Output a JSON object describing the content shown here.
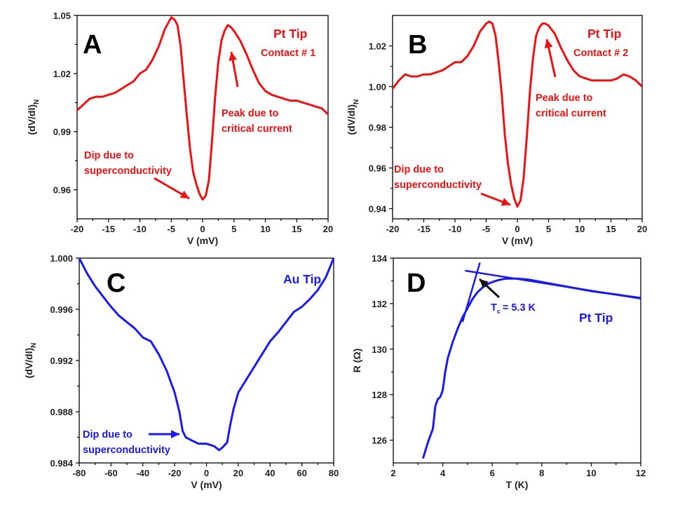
{
  "colors": {
    "red": "#ee1111",
    "blue": "#1a1aee"
  },
  "chart_data": [
    {
      "id": "A",
      "type": "line",
      "panel_label": "A",
      "tip_label": "Pt Tip",
      "contact_label": "Contact # 1",
      "xlabel": "V (mV)",
      "ylabel": "(dV/dI)",
      "ylabel_sub": "N",
      "xlim": [
        -20,
        20
      ],
      "ylim": [
        0.945,
        1.05
      ],
      "xticks": [
        -20,
        -15,
        -10,
        -5,
        0,
        5,
        10,
        15,
        20
      ],
      "yticks": [
        0.96,
        0.99,
        1.02,
        1.05
      ],
      "ytick_labels": [
        "0.96",
        "0.99",
        "1.02",
        "1.05"
      ],
      "annotations": [
        {
          "line1": "Peak due to",
          "line2": "critical current"
        },
        {
          "line1": "Dip due to",
          "line2": "superconductivity"
        }
      ],
      "x": [
        -20,
        -19,
        -18,
        -17,
        -16,
        -15,
        -14,
        -13,
        -12,
        -11,
        -10,
        -9,
        -8,
        -7,
        -6,
        -5,
        -4.5,
        -4,
        -3.5,
        -3,
        -2.5,
        -2,
        -1.5,
        -1,
        -0.5,
        0,
        0.5,
        1,
        1.5,
        2,
        2.5,
        3,
        3.5,
        4,
        4.5,
        5,
        6,
        7,
        8,
        9,
        10,
        11,
        12,
        13,
        14,
        15,
        16,
        17,
        18,
        19,
        20
      ],
      "y": [
        1.001,
        1.004,
        1.007,
        1.008,
        1.008,
        1.009,
        1.01,
        1.012,
        1.014,
        1.016,
        1.02,
        1.022,
        1.027,
        1.034,
        1.043,
        1.049,
        1.048,
        1.045,
        1.034,
        1.016,
        0.998,
        0.981,
        0.969,
        0.963,
        0.958,
        0.955,
        0.957,
        0.965,
        0.985,
        1.008,
        1.026,
        1.037,
        1.042,
        1.045,
        1.044,
        1.042,
        1.037,
        1.03,
        1.022,
        1.015,
        1.011,
        1.009,
        1.008,
        1.007,
        1.006,
        1.006,
        1.005,
        1.004,
        1.003,
        1.002,
        0.999
      ]
    },
    {
      "id": "B",
      "type": "line",
      "panel_label": "B",
      "tip_label": "Pt Tip",
      "contact_label": "Contact # 2",
      "xlabel": "V (mV)",
      "ylabel": "(dV/dI)",
      "ylabel_sub": "N",
      "xlim": [
        -20,
        20
      ],
      "ylim": [
        0.935,
        1.035
      ],
      "xticks": [
        -20,
        -15,
        -10,
        -5,
        0,
        5,
        10,
        15,
        20
      ],
      "yticks": [
        0.94,
        0.96,
        0.98,
        1.0,
        1.02
      ],
      "ytick_labels": [
        "0.94",
        "0.96",
        "0.98",
        "1.00",
        "1.02"
      ],
      "annotations": [
        {
          "line1": "Peak due to",
          "line2": "critical current"
        },
        {
          "line1": "Dip due to",
          "line2": "superconductivity"
        }
      ],
      "x": [
        -20,
        -19,
        -18,
        -17,
        -16,
        -15,
        -14,
        -13,
        -12,
        -11,
        -10,
        -9,
        -8,
        -7,
        -6,
        -5,
        -4.5,
        -4,
        -3.5,
        -3,
        -2.5,
        -2,
        -1.5,
        -1,
        -0.5,
        0,
        0.5,
        1,
        1.5,
        2,
        2.5,
        3,
        3.5,
        4,
        4.5,
        5,
        6,
        7,
        8,
        9,
        10,
        11,
        12,
        13,
        14,
        15,
        16,
        17,
        18,
        19,
        20
      ],
      "y": [
        0.999,
        1.003,
        1.006,
        1.005,
        1.005,
        1.006,
        1.006,
        1.007,
        1.008,
        1.01,
        1.012,
        1.012,
        1.015,
        1.02,
        1.027,
        1.031,
        1.032,
        1.031,
        1.025,
        1.012,
        0.996,
        0.976,
        0.962,
        0.952,
        0.945,
        0.941,
        0.944,
        0.955,
        0.975,
        0.997,
        1.014,
        1.025,
        1.029,
        1.031,
        1.031,
        1.03,
        1.026,
        1.019,
        1.013,
        1.008,
        1.005,
        1.004,
        1.003,
        1.003,
        1.003,
        1.003,
        1.004,
        1.006,
        1.005,
        1.003,
        1.0
      ]
    },
    {
      "id": "C",
      "type": "line",
      "panel_label": "C",
      "tip_label": "Au Tip",
      "xlabel": "V (mV)",
      "ylabel": "(dV/dI)",
      "ylabel_sub": "N",
      "xlim": [
        -80,
        80
      ],
      "ylim": [
        0.984,
        1.0
      ],
      "xticks": [
        -80,
        -60,
        -40,
        -20,
        0,
        20,
        40,
        60,
        80
      ],
      "yticks": [
        0.984,
        0.988,
        0.992,
        0.996,
        1.0
      ],
      "ytick_labels": [
        "0.984",
        "0.988",
        "0.992",
        "0.996",
        "1.000"
      ],
      "annotations": [
        {
          "line1": "Dip due to",
          "line2": "superconductivity"
        }
      ],
      "x": [
        -80,
        -75,
        -70,
        -65,
        -60,
        -55,
        -50,
        -45,
        -40,
        -35,
        -30,
        -25,
        -20,
        -17,
        -15,
        -13,
        -10,
        -5,
        0,
        5,
        8,
        10,
        13,
        15,
        17,
        20,
        25,
        30,
        35,
        40,
        45,
        50,
        55,
        60,
        65,
        70,
        75,
        80
      ],
      "y": [
        1.0,
        0.9988,
        0.9978,
        0.997,
        0.9962,
        0.9955,
        0.995,
        0.9945,
        0.9938,
        0.9935,
        0.9925,
        0.9912,
        0.9895,
        0.988,
        0.9865,
        0.986,
        0.9858,
        0.9855,
        0.9855,
        0.9853,
        0.985,
        0.9852,
        0.9856,
        0.987,
        0.9882,
        0.9895,
        0.9905,
        0.9915,
        0.9925,
        0.9935,
        0.9942,
        0.995,
        0.9958,
        0.9962,
        0.9968,
        0.9975,
        0.9985,
        1.0
      ]
    },
    {
      "id": "D",
      "type": "line",
      "panel_label": "D",
      "tip_label": "Pt Tip",
      "tc_label": "T",
      "tc_sub": "c",
      "tc_value": "= 5.3 K",
      "xlabel": "T (K)",
      "ylabel": "R (Ω)",
      "xlim": [
        2,
        12
      ],
      "ylim": [
        125,
        134
      ],
      "xticks": [
        2,
        4,
        6,
        8,
        10,
        12
      ],
      "yticks": [
        126,
        128,
        130,
        132,
        134
      ],
      "ytick_labels": [
        "126",
        "128",
        "130",
        "132",
        "134"
      ],
      "x": [
        3.2,
        3.4,
        3.6,
        3.7,
        3.8,
        3.9,
        4.0,
        4.1,
        4.2,
        4.4,
        4.6,
        4.8,
        5.0,
        5.2,
        5.4,
        5.6,
        5.8,
        6.0,
        6.3,
        6.6,
        7.0,
        7.5,
        8.0,
        9.0,
        10.0,
        11.0,
        12.0
      ],
      "y": [
        125.2,
        125.9,
        126.5,
        127.5,
        127.8,
        127.9,
        128.2,
        129.0,
        129.6,
        130.3,
        130.9,
        131.4,
        131.8,
        132.2,
        132.5,
        132.7,
        132.85,
        132.95,
        133.05,
        133.1,
        133.1,
        133.05,
        132.95,
        132.75,
        132.55,
        132.4,
        132.25
      ],
      "fit_lines": [
        {
          "x": [
            4.8,
            5.5
          ],
          "y": [
            131.2,
            133.8
          ]
        },
        {
          "x": [
            4.9,
            12.0
          ],
          "y": [
            133.45,
            132.22
          ]
        }
      ]
    }
  ]
}
